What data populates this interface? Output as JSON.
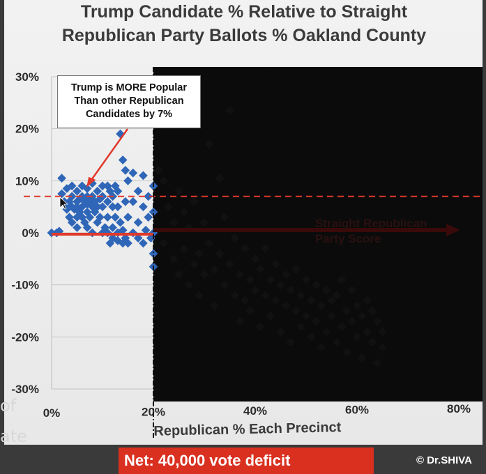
{
  "chart_data": {
    "type": "scatter",
    "title": "Trump Candidate % Relative to Straight Republican Party Ballots % Oakland County",
    "title_lines": [
      "Trump Candidate % Relative to Straight",
      "Republican Party Ballots % Oakland County"
    ],
    "xlabel": "Republican % Each Precinct",
    "ylabel": "",
    "xlim": [
      0,
      80
    ],
    "ylim": [
      -30,
      30
    ],
    "x_ticks": [
      0,
      20,
      40,
      60,
      80
    ],
    "x_tick_labels": [
      "0%",
      "20%",
      "40%",
      "60%",
      "80%"
    ],
    "y_ticks": [
      -30,
      -20,
      -10,
      0,
      10,
      20,
      30
    ],
    "y_tick_labels": [
      "-30%",
      "-20%",
      "-10%",
      "0%",
      "10%",
      "20%",
      "30%"
    ],
    "grid": true,
    "point_color": "#2f66b8",
    "dark_point_color": "#111111",
    "threshold_x": 20,
    "reference_lines": [
      {
        "y": 7,
        "style": "dashed",
        "color": "#e0392b"
      },
      {
        "y": 0,
        "style": "solid",
        "color": "#e0392b"
      }
    ],
    "annotations": [
      {
        "text_lines": [
          "Trump is MORE Popular",
          "Than other Republican",
          "Candidates by 7%"
        ],
        "points_to": [
          7,
          9
        ]
      },
      {
        "text_lines": [
          "Straight Republican",
          "Party Score"
        ],
        "arrow_y": 0
      }
    ],
    "points": [
      [
        0,
        0
      ],
      [
        1,
        0
      ],
      [
        1.5,
        0.3
      ],
      [
        2,
        10.5
      ],
      [
        2,
        7.5
      ],
      [
        2.5,
        6
      ],
      [
        3,
        5.5
      ],
      [
        3,
        8.5
      ],
      [
        3,
        4.5
      ],
      [
        3.5,
        6
      ],
      [
        3.5,
        3
      ],
      [
        4,
        5
      ],
      [
        4,
        7
      ],
      [
        4,
        2
      ],
      [
        4,
        9
      ],
      [
        4.5,
        4.5
      ],
      [
        5,
        6
      ],
      [
        5,
        8
      ],
      [
        5,
        5
      ],
      [
        5,
        3
      ],
      [
        5,
        1
      ],
      [
        5.5,
        6.5
      ],
      [
        5.5,
        4
      ],
      [
        6,
        7
      ],
      [
        6,
        5
      ],
      [
        6,
        3
      ],
      [
        6,
        9
      ],
      [
        6.5,
        6
      ],
      [
        6.5,
        2
      ],
      [
        7,
        7
      ],
      [
        7,
        5.5
      ],
      [
        7,
        4
      ],
      [
        7,
        8.5
      ],
      [
        7,
        1
      ],
      [
        7.5,
        6
      ],
      [
        7.5,
        3
      ],
      [
        8,
        9.5
      ],
      [
        8,
        7
      ],
      [
        8,
        5
      ],
      [
        8,
        0
      ],
      [
        8.5,
        6
      ],
      [
        8.5,
        4
      ],
      [
        9,
        8
      ],
      [
        9,
        5
      ],
      [
        9,
        2
      ],
      [
        9.5,
        6.5
      ],
      [
        9.5,
        3
      ],
      [
        10,
        9
      ],
      [
        10,
        7
      ],
      [
        10,
        5
      ],
      [
        10,
        0
      ],
      [
        10.5,
        1
      ],
      [
        11,
        9
      ],
      [
        11,
        6
      ],
      [
        11,
        3
      ],
      [
        11,
        0
      ],
      [
        11.5,
        8
      ],
      [
        11.5,
        -2
      ],
      [
        12,
        7
      ],
      [
        12,
        5
      ],
      [
        12,
        1
      ],
      [
        12,
        -1
      ],
      [
        12.5,
        9
      ],
      [
        12.5,
        3
      ],
      [
        13,
        8
      ],
      [
        13,
        5
      ],
      [
        13,
        0
      ],
      [
        13,
        -1.5
      ],
      [
        13.5,
        19
      ],
      [
        13.5,
        2
      ],
      [
        14,
        14
      ],
      [
        14,
        -2
      ],
      [
        14,
        0.5
      ],
      [
        14.5,
        12
      ],
      [
        14.5,
        -1
      ],
      [
        14.5,
        6
      ],
      [
        15,
        10
      ],
      [
        15,
        3
      ],
      [
        15,
        -2
      ],
      [
        16,
        11.5
      ],
      [
        16,
        6
      ],
      [
        16,
        0
      ],
      [
        17,
        8
      ],
      [
        17,
        2
      ],
      [
        17,
        -1
      ],
      [
        18,
        11
      ],
      [
        18,
        5
      ],
      [
        18,
        -2
      ],
      [
        18.5,
        0.5
      ],
      [
        19,
        7
      ],
      [
        19,
        3
      ],
      [
        19.5,
        -1
      ],
      [
        20,
        9
      ],
      [
        20,
        4
      ],
      [
        20,
        0
      ],
      [
        20,
        -4
      ],
      [
        20,
        -6.5
      ]
    ],
    "dark_points": [
      [
        21,
        12
      ],
      [
        22,
        10
      ],
      [
        22,
        -2
      ],
      [
        23,
        5
      ],
      [
        24,
        -5
      ],
      [
        24,
        2
      ],
      [
        25,
        8
      ],
      [
        25,
        -8
      ],
      [
        26,
        -3
      ],
      [
        26,
        4
      ],
      [
        27,
        -10
      ],
      [
        27,
        1
      ],
      [
        28,
        -6
      ],
      [
        28,
        6
      ],
      [
        29,
        -4
      ],
      [
        29,
        -12
      ],
      [
        30,
        2
      ],
      [
        30,
        -8
      ],
      [
        31,
        17
      ],
      [
        31,
        -2
      ],
      [
        32,
        -7
      ],
      [
        32,
        -14
      ],
      [
        33,
        10.5
      ],
      [
        33,
        -4
      ],
      [
        34,
        -10
      ],
      [
        34,
        3
      ],
      [
        35,
        23.5
      ],
      [
        35,
        -6
      ],
      [
        36,
        -12
      ],
      [
        36,
        -1
      ],
      [
        37,
        -8
      ],
      [
        37,
        -17
      ],
      [
        38,
        -3
      ],
      [
        38,
        -13
      ],
      [
        39,
        -9
      ],
      [
        39,
        -15
      ],
      [
        40,
        -5
      ],
      [
        40,
        -11
      ],
      [
        41,
        -7
      ],
      [
        41,
        -18
      ],
      [
        42,
        -12
      ],
      [
        42,
        -3
      ],
      [
        43,
        -9
      ],
      [
        43,
        -16
      ],
      [
        44,
        -13
      ],
      [
        44,
        -6
      ],
      [
        45,
        -10
      ],
      [
        45,
        -19
      ],
      [
        46,
        -8
      ],
      [
        46,
        -14
      ],
      [
        47,
        -11
      ],
      [
        47,
        -21
      ],
      [
        48,
        -15
      ],
      [
        48,
        -7
      ],
      [
        49,
        -12
      ],
      [
        49,
        -18
      ],
      [
        50,
        -9
      ],
      [
        50,
        -16
      ],
      [
        51,
        -13
      ],
      [
        51,
        -20
      ],
      [
        52,
        -10
      ],
      [
        52,
        -17
      ],
      [
        53,
        -14
      ],
      [
        53,
        -22
      ],
      [
        54,
        -11
      ],
      [
        54,
        -19
      ],
      [
        55,
        -16
      ],
      [
        55,
        -13
      ],
      [
        56,
        -21
      ],
      [
        56,
        -12
      ],
      [
        57,
        -18
      ],
      [
        57,
        -9
      ],
      [
        58,
        -15
      ],
      [
        58,
        -23
      ],
      [
        59,
        -17
      ],
      [
        59,
        -11
      ],
      [
        60,
        -14
      ],
      [
        60,
        -20
      ],
      [
        61,
        -16
      ],
      [
        61,
        -24
      ],
      [
        62,
        -13
      ],
      [
        62,
        -19
      ],
      [
        63,
        -21
      ],
      [
        63,
        -15
      ],
      [
        64,
        -17
      ],
      [
        64,
        -25
      ],
      [
        65,
        -19
      ],
      [
        65,
        -22
      ]
    ]
  },
  "overlay": {
    "left_text_1": "of",
    "left_text_2": "ate"
  },
  "banner": {
    "net_label": "Net:",
    "net_value": " 40,000 vote deficit"
  },
  "credit": "© Dr.SHIVA"
}
